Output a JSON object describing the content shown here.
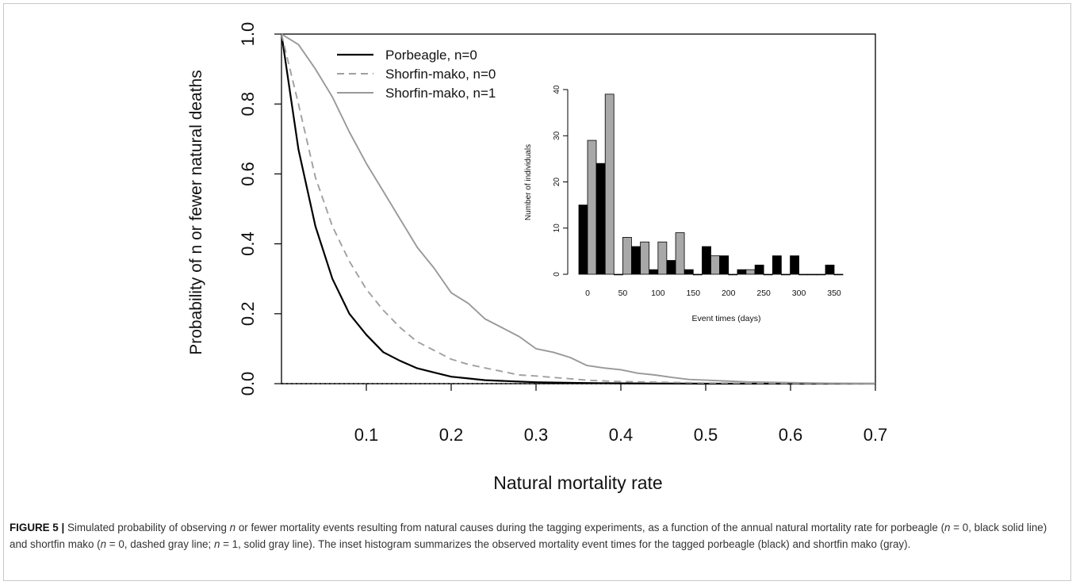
{
  "chart_data": [
    {
      "type": "line",
      "xlabel": "Natural mortality rate",
      "ylabel": "Probability of n or fewer natural deaths",
      "xlim": [
        0,
        0.7
      ],
      "ylim": [
        0,
        1
      ],
      "x_ticks": [
        "0.1",
        "0.2",
        "0.3",
        "0.4",
        "0.5",
        "0.6",
        "0.7"
      ],
      "y_ticks": [
        "0.0",
        "0.2",
        "0.4",
        "0.6",
        "0.8",
        "1.0"
      ],
      "legend_position": "top-left",
      "reference_line": {
        "y": 0,
        "style": "dotted"
      },
      "series": [
        {
          "name": "Porbeagle, n=0",
          "color": "#000000",
          "style": "solid",
          "x": [
            0,
            0.02,
            0.04,
            0.06,
            0.08,
            0.1,
            0.12,
            0.14,
            0.16,
            0.18,
            0.2,
            0.22,
            0.24,
            0.26,
            0.28,
            0.3,
            0.35,
            0.4,
            0.5,
            0.6,
            0.7
          ],
          "y": [
            1.0,
            0.67,
            0.45,
            0.3,
            0.2,
            0.14,
            0.09,
            0.065,
            0.044,
            0.032,
            0.02,
            0.015,
            0.01,
            0.008,
            0.006,
            0.004,
            0.002,
            0.001,
            0.0,
            0.0,
            0.0
          ]
        },
        {
          "name": "Shorfin-mako, n=0",
          "color": "#a0a0a0",
          "style": "dashed",
          "x": [
            0,
            0.02,
            0.04,
            0.06,
            0.08,
            0.1,
            0.12,
            0.14,
            0.16,
            0.18,
            0.2,
            0.22,
            0.24,
            0.26,
            0.28,
            0.3,
            0.32,
            0.34,
            0.36,
            0.4,
            0.45,
            0.5,
            0.6,
            0.7
          ],
          "y": [
            1.0,
            0.8,
            0.59,
            0.45,
            0.35,
            0.27,
            0.21,
            0.16,
            0.12,
            0.095,
            0.07,
            0.055,
            0.045,
            0.035,
            0.025,
            0.022,
            0.018,
            0.014,
            0.01,
            0.006,
            0.004,
            0.002,
            0.001,
            0.0
          ]
        },
        {
          "name": "Shorfin-mako, n=1",
          "color": "#999999",
          "style": "solid",
          "x": [
            0,
            0.02,
            0.04,
            0.06,
            0.08,
            0.1,
            0.12,
            0.14,
            0.16,
            0.18,
            0.2,
            0.22,
            0.24,
            0.26,
            0.28,
            0.3,
            0.32,
            0.34,
            0.36,
            0.38,
            0.4,
            0.42,
            0.44,
            0.46,
            0.48,
            0.5,
            0.52,
            0.55,
            0.6,
            0.65,
            0.7
          ],
          "y": [
            1.0,
            0.97,
            0.9,
            0.82,
            0.72,
            0.63,
            0.55,
            0.47,
            0.39,
            0.33,
            0.26,
            0.23,
            0.185,
            0.16,
            0.135,
            0.1,
            0.09,
            0.075,
            0.052,
            0.045,
            0.04,
            0.03,
            0.025,
            0.018,
            0.012,
            0.01,
            0.008,
            0.005,
            0.003,
            0.001,
            0.0
          ]
        }
      ]
    },
    {
      "type": "bar",
      "xlabel": "Event times (days)",
      "ylabel": "Number of individuals",
      "ylim": [
        0,
        40
      ],
      "x_ticks": [
        "0",
        "50",
        "100",
        "150",
        "200",
        "250",
        "300",
        "350"
      ],
      "y_ticks": [
        "0",
        "10",
        "20",
        "30",
        "40"
      ],
      "categories": [
        0,
        25,
        50,
        75,
        100,
        125,
        150,
        175,
        200,
        225,
        250,
        275,
        300,
        325,
        350
      ],
      "series": [
        {
          "color": "#000000",
          "values": [
            15,
            24,
            0,
            6,
            1,
            3,
            1,
            6,
            4,
            1,
            2,
            4,
            4,
            0,
            2
          ]
        },
        {
          "color": "#a8a8a8",
          "values": [
            29,
            39,
            8,
            7,
            7,
            9,
            0,
            4,
            0,
            1,
            0,
            0,
            0,
            0,
            0
          ]
        }
      ]
    }
  ],
  "caption": {
    "label": "FIGURE 5 |",
    "text_parts": [
      " Simulated probability of observing ",
      "n",
      " or fewer mortality events resulting from natural causes during the tagging experiments, as a function of the annual natural mortality rate for porbeagle (",
      "n",
      " = 0, black solid line) and shortfin mako (",
      "n",
      " = 0, dashed gray line; ",
      "n",
      " = 1, solid gray line). The inset histogram summarizes the observed mortality event times for the tagged porbeagle (black) and shortfin mako (gray)."
    ]
  }
}
